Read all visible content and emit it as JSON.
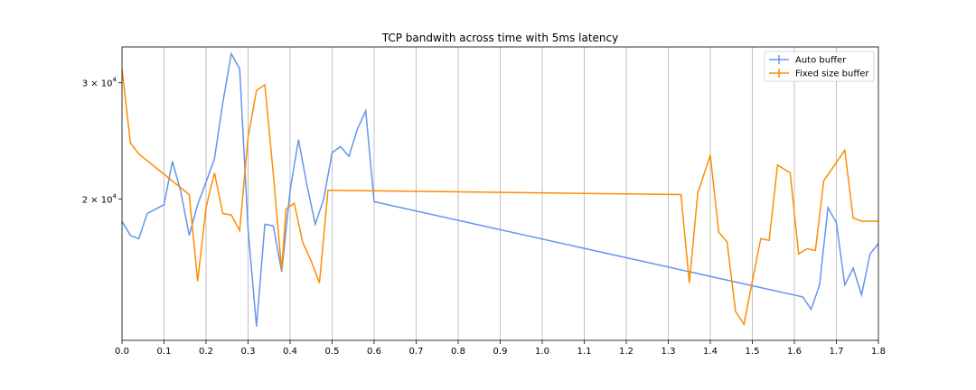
{
  "chart_data": {
    "type": "line",
    "title": "TCP bandwith across time with 5ms latency",
    "xlabel": "",
    "ylabel": "",
    "xlim": [
      0.0,
      1.8
    ],
    "y_scale": "log",
    "ylim": [
      12200,
      34000
    ],
    "grid": {
      "x": true,
      "y": false
    },
    "legend_position": "top-right",
    "x_ticks": [
      "0.0",
      "0.1",
      "0.2",
      "0.3",
      "0.4",
      "0.5",
      "0.6",
      "0.7",
      "0.8",
      "0.9",
      "1.0",
      "1.1",
      "1.2",
      "1.3",
      "1.4",
      "1.5",
      "1.6",
      "1.7",
      "1.8"
    ],
    "y_ticks": [
      {
        "value": 30000,
        "mantissa": "3",
        "exponent": "4"
      },
      {
        "value": 20000,
        "mantissa": "2",
        "exponent": "4"
      }
    ],
    "series": [
      {
        "name": "Auto buffer",
        "color": "#6495ed",
        "x": [
          0.0,
          0.02,
          0.04,
          0.06,
          0.1,
          0.12,
          0.14,
          0.16,
          0.18,
          0.2,
          0.22,
          0.24,
          0.26,
          0.28,
          0.3,
          0.32,
          0.34,
          0.36,
          0.38,
          0.4,
          0.42,
          0.44,
          0.46,
          0.48,
          0.5,
          0.52,
          0.54,
          0.56,
          0.58,
          0.6,
          1.62,
          1.64,
          1.66,
          1.68,
          1.7,
          1.72,
          1.74,
          1.76,
          1.78,
          1.8
        ],
        "y": [
          18500,
          17600,
          17400,
          19000,
          19600,
          22800,
          20500,
          17600,
          19600,
          21200,
          23000,
          28000,
          33200,
          31500,
          18000,
          12800,
          18300,
          18200,
          15500,
          20600,
          24600,
          21000,
          18300,
          20000,
          23500,
          24000,
          23200,
          25500,
          27200,
          19800,
          14200,
          13600,
          14800,
          19400,
          18400,
          14800,
          15700,
          14300,
          16500,
          17100
        ]
      },
      {
        "name": "Fixed size buffer",
        "color": "#ff8c00",
        "x": [
          0.0,
          0.02,
          0.04,
          0.16,
          0.18,
          0.2,
          0.22,
          0.24,
          0.26,
          0.28,
          0.3,
          0.32,
          0.34,
          0.36,
          0.38,
          0.39,
          0.41,
          0.43,
          0.45,
          0.47,
          0.49,
          0.51,
          1.33,
          1.35,
          1.37,
          1.4,
          1.42,
          1.44,
          1.46,
          1.48,
          1.5,
          1.52,
          1.54,
          1.56,
          1.59,
          1.61,
          1.63,
          1.65,
          1.67,
          1.72,
          1.74,
          1.76,
          1.8
        ],
        "y": [
          31500,
          24300,
          23400,
          20300,
          15000,
          19400,
          21900,
          19000,
          18900,
          17900,
          24800,
          29200,
          29800,
          21800,
          15600,
          19300,
          19700,
          17200,
          16100,
          14900,
          20600,
          20600,
          20300,
          14900,
          20400,
          23300,
          17800,
          17200,
          13500,
          12900,
          15000,
          17400,
          17300,
          22500,
          21900,
          16500,
          16800,
          16700,
          21300,
          23700,
          18700,
          18500,
          18500
        ]
      }
    ]
  }
}
